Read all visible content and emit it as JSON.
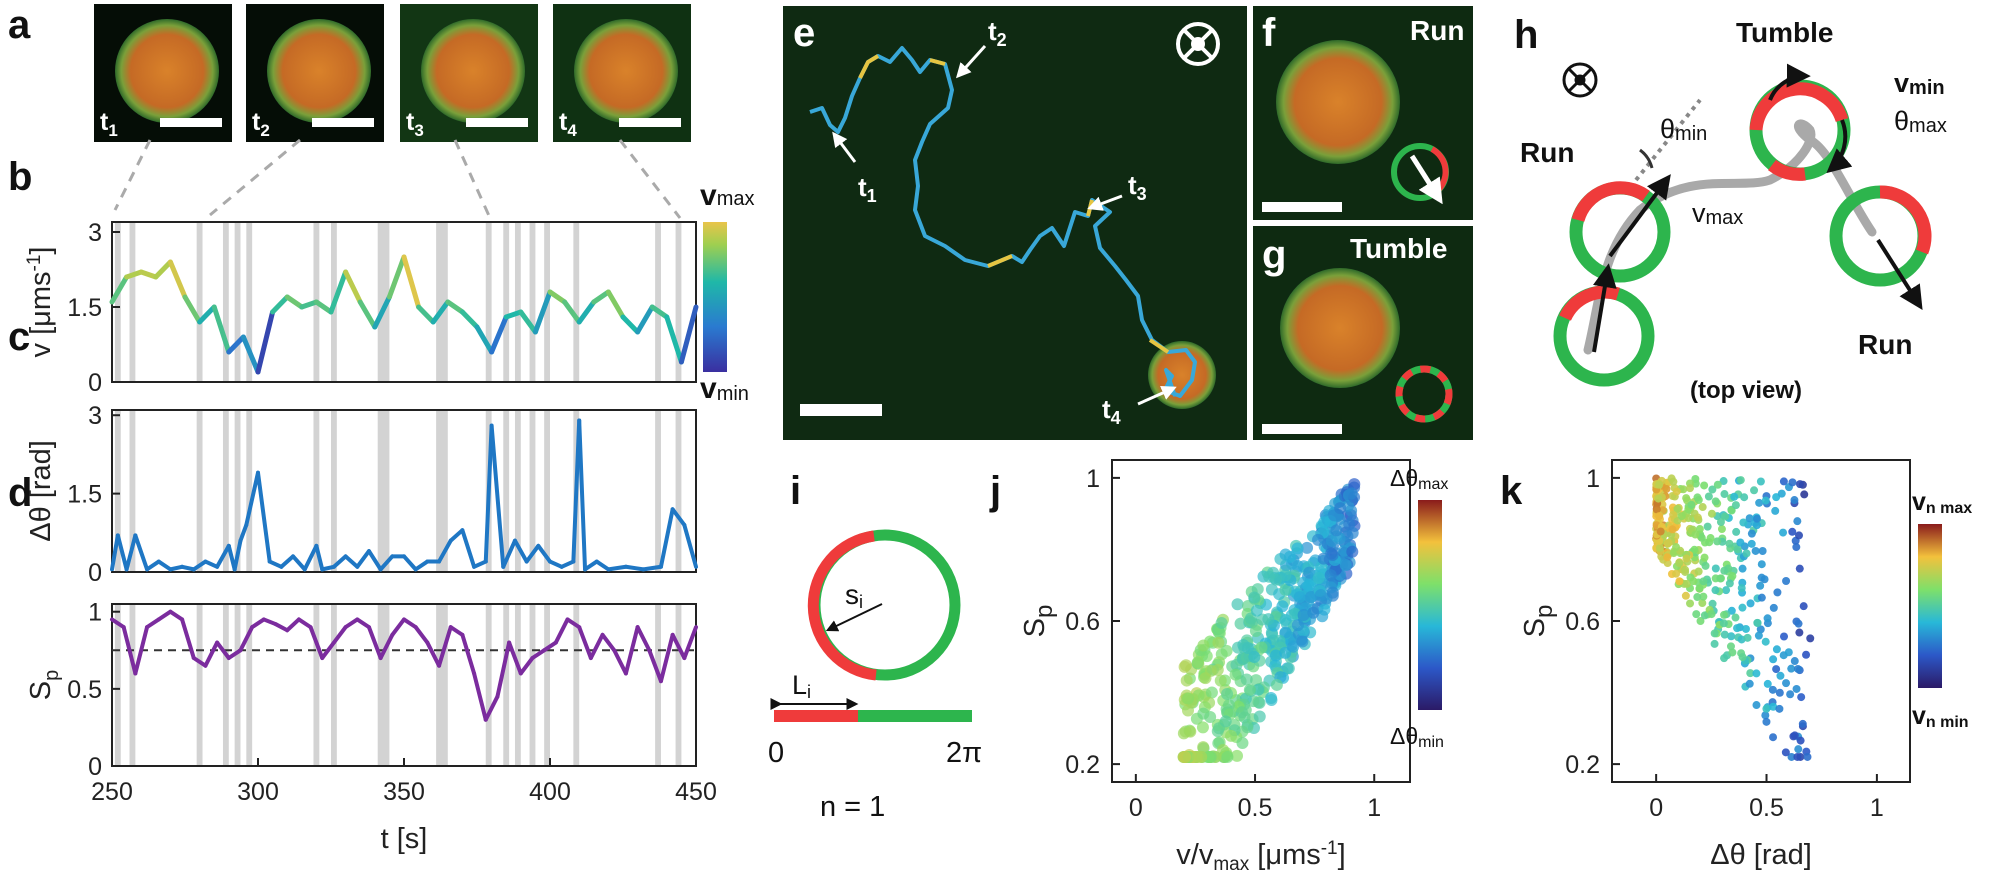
{
  "panels": {
    "a": "a",
    "b": "b",
    "c": "c",
    "d": "d",
    "e": "e",
    "f": "f",
    "g": "g",
    "h": "h",
    "i": "i",
    "j": "j",
    "k": "k"
  },
  "panel_a": {
    "frames": [
      {
        "label": "t",
        "sub": "1"
      },
      {
        "label": "t",
        "sub": "2"
      },
      {
        "label": "t",
        "sub": "3"
      },
      {
        "label": "t",
        "sub": "4"
      }
    ]
  },
  "panel_e": {
    "markers": [
      {
        "label": "t",
        "sub": "1"
      },
      {
        "label": "t",
        "sub": "2"
      },
      {
        "label": "t",
        "sub": "3"
      },
      {
        "label": "t",
        "sub": "4"
      }
    ]
  },
  "panel_f": {
    "title": "Run"
  },
  "panel_g": {
    "title": "Tumble"
  },
  "panel_h": {
    "run_left": "Run",
    "run_right": "Run",
    "tumble": "Tumble",
    "theta_min": "θ",
    "theta_min_sub": "min",
    "v_max": "v",
    "v_max_sub": "max",
    "v_min": "v",
    "v_min_sub": "min",
    "theta_max": "θ",
    "theta_max_sub": "max",
    "caption": "(top view)"
  },
  "panel_i": {
    "s_label": "s",
    "s_sub": "i",
    "l_label": "L",
    "l_sub": "i",
    "zero": "0",
    "two_pi": "2π",
    "n_label": "n = 1"
  },
  "colorbar_b": {
    "top": "v",
    "top_sub": "max",
    "bottom": "v",
    "bottom_sub": "min"
  },
  "colorbar_j": {
    "top": "Δθ",
    "top_sub": "max",
    "bottom": "Δθ",
    "bottom_sub": "min"
  },
  "colorbar_k": {
    "top": "v",
    "top_sub": "n max",
    "bottom": "v",
    "bottom_sub": "n min"
  },
  "colors": {
    "green": "#25a84a",
    "red": "#ef3b3b",
    "purple": "#7b2c9e",
    "blue_line": "#1f77c4",
    "shade": "#d3d3d3"
  },
  "chart_data": [
    {
      "id": "b",
      "type": "line",
      "ylabel_main": "v [μms",
      "ylabel_sup": "-1",
      "ylabel_end": "]",
      "yticks": [
        "0",
        "1.5",
        "3"
      ],
      "ylim": [
        0,
        3.2
      ],
      "xlim": [
        250,
        450
      ],
      "series": [
        {
          "values_x": [
            250,
            255,
            260,
            265,
            270,
            275,
            280,
            285,
            290,
            295,
            300,
            305,
            310,
            315,
            320,
            325,
            330,
            335,
            340,
            345,
            350,
            355,
            360,
            365,
            370,
            375,
            380,
            385,
            390,
            395,
            400,
            405,
            410,
            415,
            420,
            425,
            430,
            435,
            440,
            445,
            450
          ],
          "values": [
            1.6,
            2.1,
            2.2,
            2.1,
            2.4,
            1.7,
            1.2,
            1.5,
            0.6,
            0.9,
            0.2,
            1.4,
            1.7,
            1.5,
            1.6,
            1.4,
            2.2,
            1.6,
            1.1,
            1.7,
            2.5,
            1.5,
            1.2,
            1.6,
            1.4,
            1.1,
            0.6,
            1.3,
            1.4,
            1.0,
            1.8,
            1.6,
            1.2,
            1.6,
            1.8,
            1.3,
            1.0,
            1.5,
            1.3,
            0.4,
            1.5
          ]
        }
      ]
    },
    {
      "id": "c",
      "type": "line",
      "ylabel_main": "Δθ [rad]",
      "yticks": [
        "0",
        "1.5",
        "3"
      ],
      "ylim": [
        0,
        3.1
      ],
      "xlim": [
        250,
        450
      ],
      "series": [
        {
          "values_x": [
            250,
            252,
            255,
            258,
            262,
            266,
            270,
            274,
            278,
            282,
            286,
            290,
            292,
            294,
            296,
            300,
            304,
            308,
            312,
            316,
            320,
            322,
            326,
            330,
            334,
            338,
            342,
            346,
            350,
            354,
            358,
            362,
            366,
            370,
            374,
            378,
            380,
            384,
            388,
            392,
            396,
            400,
            404,
            408,
            410,
            412,
            416,
            420,
            426,
            432,
            438,
            442,
            446,
            450
          ],
          "values": [
            0.05,
            0.7,
            0.05,
            0.7,
            0.05,
            0.2,
            0.05,
            0.1,
            0.05,
            0.2,
            0.1,
            0.5,
            0.05,
            0.6,
            0.9,
            1.9,
            0.2,
            0.1,
            0.3,
            0.05,
            0.5,
            0.05,
            0.1,
            0.3,
            0.1,
            0.4,
            0.05,
            0.3,
            0.3,
            0.05,
            0.2,
            0.2,
            0.6,
            0.8,
            0.1,
            0.2,
            2.8,
            0.1,
            0.6,
            0.2,
            0.5,
            0.2,
            0.1,
            0.2,
            2.9,
            0.05,
            0.2,
            0.05,
            0.1,
            0.05,
            0.1,
            1.2,
            0.9,
            0.1
          ]
        }
      ]
    },
    {
      "id": "d",
      "type": "line",
      "ylabel_main": "S",
      "ylabel_sub": "p",
      "yticks": [
        "0",
        "0.5",
        "1"
      ],
      "ylim": [
        0,
        1.05
      ],
      "xticks": [
        "250",
        "300",
        "350",
        "400",
        "450"
      ],
      "xlim": [
        250,
        450
      ],
      "xlabel": "t [s]",
      "threshold": 0.75,
      "series": [
        {
          "values_x": [
            250,
            254,
            258,
            262,
            266,
            270,
            274,
            278,
            282,
            286,
            290,
            294,
            298,
            302,
            306,
            310,
            314,
            318,
            322,
            326,
            330,
            334,
            338,
            342,
            346,
            350,
            354,
            358,
            362,
            366,
            370,
            374,
            378,
            382,
            386,
            390,
            394,
            398,
            402,
            406,
            410,
            414,
            418,
            422,
            426,
            430,
            434,
            438,
            442,
            446,
            450
          ],
          "values": [
            0.95,
            0.9,
            0.6,
            0.9,
            0.95,
            1.0,
            0.95,
            0.7,
            0.65,
            0.8,
            0.7,
            0.75,
            0.9,
            0.95,
            0.92,
            0.88,
            0.95,
            0.9,
            0.7,
            0.8,
            0.9,
            0.95,
            0.9,
            0.7,
            0.85,
            0.95,
            0.9,
            0.8,
            0.65,
            0.9,
            0.85,
            0.6,
            0.3,
            0.45,
            0.8,
            0.6,
            0.7,
            0.75,
            0.8,
            0.95,
            0.9,
            0.7,
            0.85,
            0.75,
            0.6,
            0.9,
            0.75,
            0.55,
            0.85,
            0.7,
            0.9
          ]
        }
      ]
    },
    {
      "id": "j",
      "type": "scatter",
      "xlabel": "v/v",
      "xlabel_sub": "max",
      "xlabel_end": " [μms",
      "xlabel_sup": "-1",
      "xlabel_close": "]",
      "ylabel": "S",
      "ylabel_sub": "p",
      "xticks": [
        "0",
        "0.5",
        "1"
      ],
      "xlim": [
        -0.1,
        1.15
      ],
      "yticks": [
        "0.2",
        "0.6",
        "1"
      ],
      "ylim": [
        0.15,
        1.05
      ]
    },
    {
      "id": "k",
      "type": "scatter",
      "xlabel": "Δθ [rad]",
      "ylabel": "S",
      "ylabel_sub": "p",
      "xticks": [
        "0",
        "0.5",
        "1"
      ],
      "xlim": [
        -0.2,
        1.15
      ],
      "yticks": [
        "0.2",
        "0.6",
        "1"
      ],
      "ylim": [
        0.15,
        1.05
      ]
    }
  ]
}
